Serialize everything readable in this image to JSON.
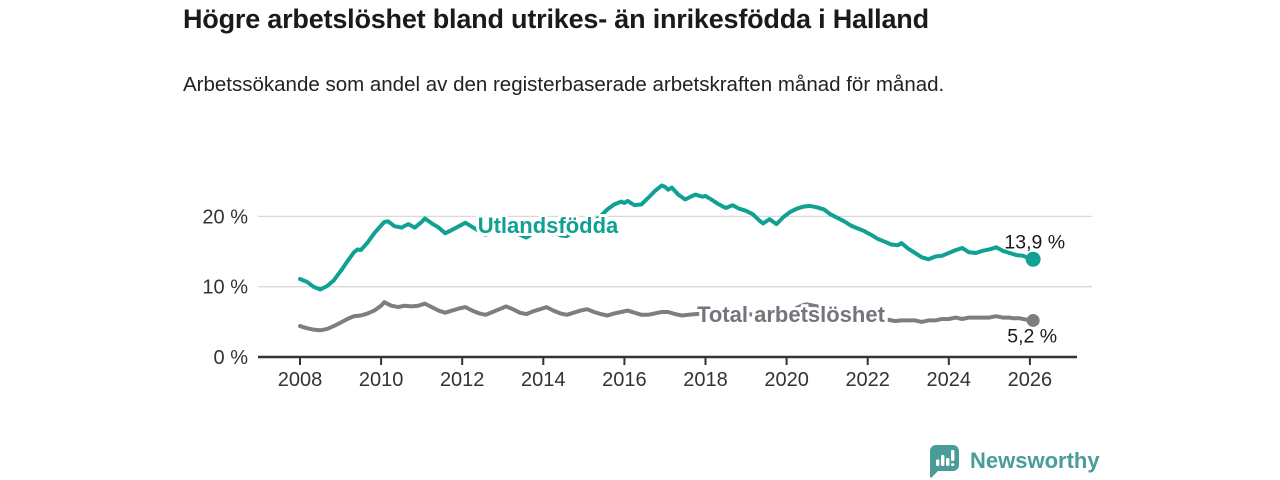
{
  "header": {
    "title": "Högre arbetslöshet bland utrikes- än inrikesfödda i Halland",
    "subtitle": "Arbetssökande som andel av den registerbaserade arbetskraften månad för månad."
  },
  "footer": {
    "brand": "Newsworthy",
    "logo_icon": "newsworthy-speech-bubble-barchart-icon"
  },
  "colors": {
    "accent_teal": "#10a094",
    "line_gray": "#7d7d82",
    "label_gray": "#74747c",
    "axis": "#333333",
    "grid": "#d9d9d9",
    "text": "#1a1a1a",
    "logo_teal": "#4a9c98",
    "background": "#ffffff"
  },
  "chart_data": {
    "type": "line",
    "title": "Högre arbetslöshet bland utrikes- än inrikesfödda i Halland",
    "subtitle": "Arbetssökande som andel av den registerbaserade arbetskraften månad för månad.",
    "unit": "%",
    "grid": true,
    "legend_position": "inline-labels",
    "x_range": [
      2007.8,
      2027.2
    ],
    "ylim": [
      0,
      26
    ],
    "x_ticks": [
      2008,
      2010,
      2012,
      2014,
      2016,
      2018,
      2020,
      2022,
      2024,
      2026
    ],
    "y_ticks": [
      {
        "value": 0,
        "label": "0 %"
      },
      {
        "value": 10,
        "label": "10 %"
      },
      {
        "value": 20,
        "label": "20 %"
      }
    ],
    "series": [
      {
        "name": "Utlandsfödda",
        "color": "#10a094",
        "end_value": 13.9,
        "end_label": "13,9 %",
        "points": [
          [
            2008.0,
            11.1
          ],
          [
            2008.17,
            10.7
          ],
          [
            2008.33,
            10.0
          ],
          [
            2008.5,
            9.6
          ],
          [
            2008.67,
            10.1
          ],
          [
            2008.83,
            10.9
          ],
          [
            2009.0,
            12.2
          ],
          [
            2009.17,
            13.6
          ],
          [
            2009.33,
            14.9
          ],
          [
            2009.42,
            15.3
          ],
          [
            2009.5,
            15.2
          ],
          [
            2009.67,
            16.3
          ],
          [
            2009.83,
            17.6
          ],
          [
            2010.0,
            18.7
          ],
          [
            2010.08,
            19.2
          ],
          [
            2010.17,
            19.3
          ],
          [
            2010.33,
            18.6
          ],
          [
            2010.5,
            18.4
          ],
          [
            2010.67,
            18.9
          ],
          [
            2010.83,
            18.4
          ],
          [
            2011.0,
            19.2
          ],
          [
            2011.08,
            19.7
          ],
          [
            2011.25,
            19.0
          ],
          [
            2011.42,
            18.4
          ],
          [
            2011.58,
            17.6
          ],
          [
            2011.75,
            18.1
          ],
          [
            2011.92,
            18.6
          ],
          [
            2012.08,
            19.1
          ],
          [
            2012.25,
            18.5
          ],
          [
            2012.42,
            17.9
          ],
          [
            2012.58,
            17.4
          ],
          [
            2012.75,
            17.9
          ],
          [
            2012.92,
            18.3
          ],
          [
            2013.08,
            18.7
          ],
          [
            2013.25,
            18.1
          ],
          [
            2013.42,
            17.4
          ],
          [
            2013.58,
            17.0
          ],
          [
            2013.75,
            17.6
          ],
          [
            2013.92,
            18.2
          ],
          [
            2014.08,
            18.6
          ],
          [
            2014.25,
            18.0
          ],
          [
            2014.42,
            17.3
          ],
          [
            2014.58,
            17.2
          ],
          [
            2014.75,
            17.8
          ],
          [
            2014.92,
            18.3
          ],
          [
            2015.08,
            18.7
          ],
          [
            2015.25,
            19.2
          ],
          [
            2015.42,
            20.1
          ],
          [
            2015.58,
            21.0
          ],
          [
            2015.75,
            21.7
          ],
          [
            2015.92,
            22.1
          ],
          [
            2016.0,
            21.9
          ],
          [
            2016.08,
            22.2
          ],
          [
            2016.25,
            21.6
          ],
          [
            2016.42,
            21.7
          ],
          [
            2016.58,
            22.6
          ],
          [
            2016.75,
            23.6
          ],
          [
            2016.92,
            24.4
          ],
          [
            2017.0,
            24.2
          ],
          [
            2017.08,
            23.8
          ],
          [
            2017.17,
            24.1
          ],
          [
            2017.33,
            23.1
          ],
          [
            2017.5,
            22.4
          ],
          [
            2017.67,
            22.9
          ],
          [
            2017.75,
            23.1
          ],
          [
            2017.92,
            22.8
          ],
          [
            2018.0,
            22.9
          ],
          [
            2018.17,
            22.3
          ],
          [
            2018.33,
            21.7
          ],
          [
            2018.5,
            21.2
          ],
          [
            2018.67,
            21.6
          ],
          [
            2018.83,
            21.1
          ],
          [
            2019.0,
            20.8
          ],
          [
            2019.17,
            20.3
          ],
          [
            2019.33,
            19.4
          ],
          [
            2019.42,
            19.0
          ],
          [
            2019.58,
            19.6
          ],
          [
            2019.75,
            18.9
          ],
          [
            2019.92,
            19.9
          ],
          [
            2020.08,
            20.6
          ],
          [
            2020.25,
            21.1
          ],
          [
            2020.42,
            21.4
          ],
          [
            2020.58,
            21.5
          ],
          [
            2020.75,
            21.3
          ],
          [
            2020.92,
            21.0
          ],
          [
            2021.08,
            20.3
          ],
          [
            2021.25,
            19.8
          ],
          [
            2021.42,
            19.3
          ],
          [
            2021.58,
            18.7
          ],
          [
            2021.75,
            18.3
          ],
          [
            2021.92,
            17.9
          ],
          [
            2022.08,
            17.4
          ],
          [
            2022.25,
            16.8
          ],
          [
            2022.42,
            16.4
          ],
          [
            2022.58,
            16.0
          ],
          [
            2022.75,
            15.9
          ],
          [
            2022.83,
            16.2
          ],
          [
            2023.0,
            15.4
          ],
          [
            2023.17,
            14.8
          ],
          [
            2023.33,
            14.2
          ],
          [
            2023.5,
            13.9
          ],
          [
            2023.67,
            14.3
          ],
          [
            2023.83,
            14.4
          ],
          [
            2024.0,
            14.8
          ],
          [
            2024.17,
            15.2
          ],
          [
            2024.33,
            15.5
          ],
          [
            2024.5,
            14.9
          ],
          [
            2024.67,
            14.8
          ],
          [
            2024.83,
            15.1
          ],
          [
            2025.0,
            15.3
          ],
          [
            2025.17,
            15.6
          ],
          [
            2025.33,
            15.1
          ],
          [
            2025.5,
            14.8
          ],
          [
            2025.67,
            14.5
          ],
          [
            2025.83,
            14.4
          ],
          [
            2026.0,
            14.0
          ],
          [
            2026.08,
            13.9
          ]
        ]
      },
      {
        "name": "Total arbetslöshet",
        "color": "#7d7d82",
        "end_value": 5.2,
        "end_label": "5,2 %",
        "points": [
          [
            2008.0,
            4.4
          ],
          [
            2008.17,
            4.1
          ],
          [
            2008.33,
            3.9
          ],
          [
            2008.5,
            3.8
          ],
          [
            2008.67,
            4.0
          ],
          [
            2008.83,
            4.4
          ],
          [
            2009.0,
            4.9
          ],
          [
            2009.17,
            5.4
          ],
          [
            2009.33,
            5.8
          ],
          [
            2009.5,
            5.9
          ],
          [
            2009.67,
            6.2
          ],
          [
            2009.83,
            6.6
          ],
          [
            2010.0,
            7.3
          ],
          [
            2010.08,
            7.8
          ],
          [
            2010.25,
            7.3
          ],
          [
            2010.42,
            7.1
          ],
          [
            2010.58,
            7.3
          ],
          [
            2010.75,
            7.2
          ],
          [
            2010.92,
            7.3
          ],
          [
            2011.08,
            7.6
          ],
          [
            2011.25,
            7.1
          ],
          [
            2011.42,
            6.6
          ],
          [
            2011.58,
            6.3
          ],
          [
            2011.75,
            6.6
          ],
          [
            2011.92,
            6.9
          ],
          [
            2012.08,
            7.1
          ],
          [
            2012.25,
            6.6
          ],
          [
            2012.42,
            6.2
          ],
          [
            2012.58,
            6.0
          ],
          [
            2012.75,
            6.4
          ],
          [
            2012.92,
            6.8
          ],
          [
            2013.08,
            7.2
          ],
          [
            2013.25,
            6.8
          ],
          [
            2013.42,
            6.3
          ],
          [
            2013.58,
            6.1
          ],
          [
            2013.75,
            6.5
          ],
          [
            2013.92,
            6.8
          ],
          [
            2014.08,
            7.1
          ],
          [
            2014.25,
            6.6
          ],
          [
            2014.42,
            6.2
          ],
          [
            2014.58,
            6.0
          ],
          [
            2014.75,
            6.3
          ],
          [
            2014.92,
            6.6
          ],
          [
            2015.08,
            6.8
          ],
          [
            2015.25,
            6.4
          ],
          [
            2015.42,
            6.1
          ],
          [
            2015.58,
            5.9
          ],
          [
            2015.75,
            6.2
          ],
          [
            2015.92,
            6.4
          ],
          [
            2016.08,
            6.6
          ],
          [
            2016.25,
            6.3
          ],
          [
            2016.42,
            6.0
          ],
          [
            2016.58,
            6.0
          ],
          [
            2016.75,
            6.2
          ],
          [
            2016.92,
            6.4
          ],
          [
            2017.08,
            6.4
          ],
          [
            2017.25,
            6.1
          ],
          [
            2017.42,
            5.9
          ],
          [
            2017.58,
            6.0
          ],
          [
            2017.75,
            6.1
          ],
          [
            2017.92,
            6.2
          ],
          [
            2018.08,
            6.2
          ],
          [
            2018.25,
            6.0
          ],
          [
            2018.42,
            5.8
          ],
          [
            2018.58,
            5.7
          ],
          [
            2018.75,
            5.9
          ],
          [
            2018.92,
            6.0
          ],
          [
            2019.08,
            6.1
          ],
          [
            2019.25,
            5.9
          ],
          [
            2019.42,
            5.8
          ],
          [
            2019.58,
            5.8
          ],
          [
            2019.75,
            5.9
          ],
          [
            2019.92,
            6.1
          ],
          [
            2020.08,
            6.4
          ],
          [
            2020.25,
            7.0
          ],
          [
            2020.42,
            7.4
          ],
          [
            2020.5,
            7.5
          ],
          [
            2020.67,
            7.3
          ],
          [
            2020.83,
            7.1
          ],
          [
            2021.0,
            7.0
          ],
          [
            2021.17,
            6.8
          ],
          [
            2021.33,
            6.5
          ],
          [
            2021.5,
            6.2
          ],
          [
            2021.67,
            6.0
          ],
          [
            2021.83,
            5.8
          ],
          [
            2022.0,
            5.7
          ],
          [
            2022.17,
            5.5
          ],
          [
            2022.33,
            5.4
          ],
          [
            2022.5,
            5.3
          ],
          [
            2022.67,
            5.1
          ],
          [
            2022.83,
            5.2
          ],
          [
            2023.0,
            5.2
          ],
          [
            2023.17,
            5.2
          ],
          [
            2023.33,
            5.0
          ],
          [
            2023.5,
            5.2
          ],
          [
            2023.67,
            5.2
          ],
          [
            2023.83,
            5.4
          ],
          [
            2024.0,
            5.4
          ],
          [
            2024.17,
            5.6
          ],
          [
            2024.33,
            5.4
          ],
          [
            2024.5,
            5.6
          ],
          [
            2024.67,
            5.6
          ],
          [
            2024.83,
            5.6
          ],
          [
            2025.0,
            5.6
          ],
          [
            2025.17,
            5.8
          ],
          [
            2025.33,
            5.6
          ],
          [
            2025.5,
            5.6
          ],
          [
            2025.58,
            5.5
          ],
          [
            2025.75,
            5.5
          ],
          [
            2025.92,
            5.3
          ],
          [
            2026.0,
            5.2
          ],
          [
            2026.08,
            5.2
          ]
        ]
      }
    ]
  }
}
